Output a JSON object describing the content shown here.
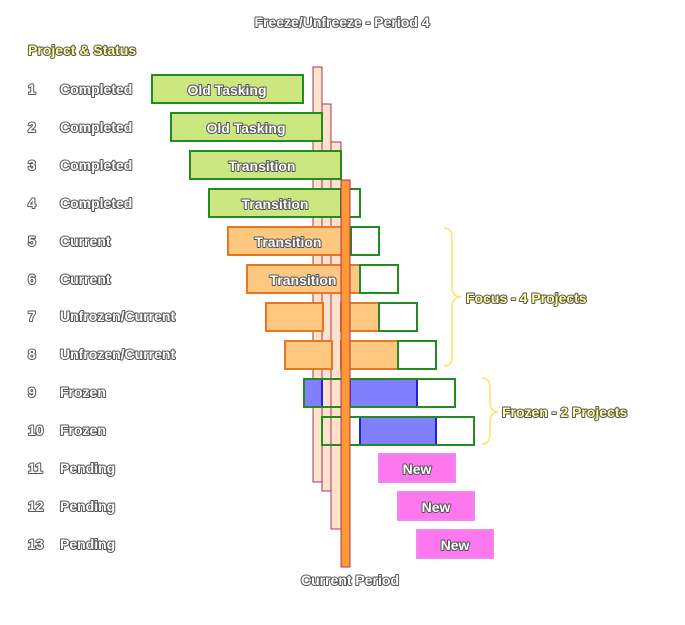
{
  "title": "Freeze/Unfreeze - Period 4",
  "header": "Project & Status",
  "footer": "Current Period",
  "projects": [
    {
      "num": "1",
      "status": "Completed"
    },
    {
      "num": "2",
      "status": "Completed"
    },
    {
      "num": "3",
      "status": "Completed"
    },
    {
      "num": "4",
      "status": "Completed"
    },
    {
      "num": "5",
      "status": "Current"
    },
    {
      "num": "6",
      "status": "Current"
    },
    {
      "num": "7",
      "status": "Unfrozen/Current"
    },
    {
      "num": "8",
      "status": "Unfrozen/Current"
    },
    {
      "num": "9",
      "status": "Frozen"
    },
    {
      "num": "10",
      "status": "Frozen"
    },
    {
      "num": "11",
      "status": "Pending"
    },
    {
      "num": "12",
      "status": "Pending"
    },
    {
      "num": "13",
      "status": "Pending"
    }
  ],
  "bar_labels": {
    "row1": "Old Tasking",
    "row2": "Old Tasking",
    "row3": "Transition",
    "row4": "Transition",
    "row5": "Transition",
    "row6": "Transition",
    "row11": "New",
    "row12": "New",
    "row13": "New"
  },
  "groups": {
    "focus": "Focus - 4 Projects",
    "frozen": "Frozen - 2 Projects"
  },
  "colors": {
    "green_fill": "#cce680",
    "green_border": "#228b22",
    "orange_fill": "#ffc880",
    "orange_border": "#e87722",
    "blue_fill": "#8080ff",
    "blue_border": "#2222dd",
    "pink_fill": "#ff77ee",
    "pink_border": "#ee88ee",
    "period_fill": "#fde3cc",
    "period_border": "#b03060",
    "current_fill": "#ff9933",
    "brace": "#ffe066",
    "label_yellow": "#ffff99"
  }
}
